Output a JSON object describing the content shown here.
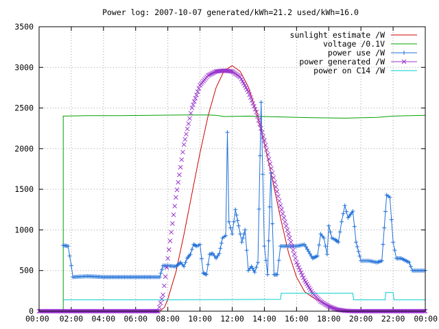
{
  "chart_data": {
    "type": "line",
    "title": "Power log: 2007-10-07 generated/kWh=21.2 used/kWh=16.0",
    "xlabel": "",
    "ylabel": "",
    "xlim": [
      0,
      24
    ],
    "ylim": [
      0,
      3500
    ],
    "x_ticks": [
      "00:00",
      "02:00",
      "04:00",
      "06:00",
      "08:00",
      "10:00",
      "12:00",
      "14:00",
      "16:00",
      "18:00",
      "20:00",
      "22:00",
      "00:00"
    ],
    "y_ticks": [
      "0",
      "500",
      "1000",
      "1500",
      "2000",
      "2500",
      "3000",
      "3500"
    ],
    "grid": true,
    "legend_position": "top-right",
    "series": [
      {
        "name": "sunlight estimate /W",
        "color": "#cc0000",
        "style": "line",
        "points": [
          [
            7.5,
            0
          ],
          [
            7.8,
            50
          ],
          [
            8.0,
            150
          ],
          [
            8.5,
            480
          ],
          [
            9.0,
            940
          ],
          [
            9.5,
            1450
          ],
          [
            10.0,
            1950
          ],
          [
            10.5,
            2400
          ],
          [
            11.0,
            2750
          ],
          [
            11.5,
            2960
          ],
          [
            12.0,
            3020
          ],
          [
            12.5,
            2950
          ],
          [
            13.0,
            2760
          ],
          [
            13.5,
            2460
          ],
          [
            14.0,
            2070
          ],
          [
            14.5,
            1620
          ],
          [
            15.0,
            1150
          ],
          [
            15.5,
            720
          ],
          [
            16.0,
            420
          ],
          [
            16.5,
            240
          ],
          [
            17.0,
            170
          ],
          [
            17.5,
            120
          ],
          [
            18.0,
            70
          ],
          [
            18.5,
            30
          ],
          [
            19.0,
            10
          ],
          [
            19.5,
            0
          ],
          [
            20.0,
            0
          ]
        ]
      },
      {
        "name": "voltage /0.1V",
        "color": "#00a000",
        "style": "line",
        "points": [
          [
            1.5,
            0
          ],
          [
            1.5,
            2400
          ],
          [
            3.0,
            2405
          ],
          [
            5.0,
            2405
          ],
          [
            7.0,
            2410
          ],
          [
            9.0,
            2415
          ],
          [
            10.5,
            2415
          ],
          [
            11.0,
            2410
          ],
          [
            11.5,
            2395
          ],
          [
            13.0,
            2400
          ],
          [
            15.0,
            2390
          ],
          [
            17.0,
            2380
          ],
          [
            19.0,
            2375
          ],
          [
            21.0,
            2385
          ],
          [
            22.0,
            2400
          ],
          [
            24.0,
            2410
          ]
        ]
      },
      {
        "name": "power use /W",
        "color": "#1e6fd8",
        "style": "linepoints",
        "points": [
          [
            1.5,
            810
          ],
          [
            1.8,
            800
          ],
          [
            2.0,
            560
          ],
          [
            2.1,
            420
          ],
          [
            3.0,
            430
          ],
          [
            4.0,
            420
          ],
          [
            5.0,
            420
          ],
          [
            6.0,
            420
          ],
          [
            7.0,
            420
          ],
          [
            7.5,
            420
          ],
          [
            7.7,
            560
          ],
          [
            8.0,
            560
          ],
          [
            8.5,
            550
          ],
          [
            8.8,
            600
          ],
          [
            9.0,
            550
          ],
          [
            9.2,
            650
          ],
          [
            9.4,
            700
          ],
          [
            9.6,
            820
          ],
          [
            9.8,
            800
          ],
          [
            10.0,
            820
          ],
          [
            10.2,
            470
          ],
          [
            10.4,
            450
          ],
          [
            10.6,
            700
          ],
          [
            10.8,
            710
          ],
          [
            11.0,
            650
          ],
          [
            11.2,
            710
          ],
          [
            11.4,
            900
          ],
          [
            11.6,
            930
          ],
          [
            11.7,
            2200
          ],
          [
            11.8,
            1100
          ],
          [
            12.0,
            950
          ],
          [
            12.2,
            1250
          ],
          [
            12.4,
            1050
          ],
          [
            12.6,
            850
          ],
          [
            12.8,
            1000
          ],
          [
            13.0,
            500
          ],
          [
            13.2,
            550
          ],
          [
            13.4,
            480
          ],
          [
            13.6,
            600
          ],
          [
            13.8,
            2570
          ],
          [
            14.0,
            800
          ],
          [
            14.2,
            450
          ],
          [
            14.4,
            1700
          ],
          [
            14.6,
            450
          ],
          [
            14.8,
            450
          ],
          [
            15.0,
            800
          ],
          [
            15.5,
            800
          ],
          [
            16.0,
            800
          ],
          [
            16.5,
            820
          ],
          [
            17.0,
            650
          ],
          [
            17.3,
            680
          ],
          [
            17.5,
            950
          ],
          [
            17.7,
            900
          ],
          [
            17.9,
            700
          ],
          [
            18.0,
            1050
          ],
          [
            18.2,
            900
          ],
          [
            18.4,
            880
          ],
          [
            18.6,
            850
          ],
          [
            18.8,
            1100
          ],
          [
            19.0,
            1300
          ],
          [
            19.2,
            1150
          ],
          [
            19.5,
            1230
          ],
          [
            19.7,
            850
          ],
          [
            20.0,
            620
          ],
          [
            20.5,
            620
          ],
          [
            21.0,
            600
          ],
          [
            21.3,
            620
          ],
          [
            21.6,
            1430
          ],
          [
            21.8,
            1400
          ],
          [
            22.0,
            850
          ],
          [
            22.2,
            650
          ],
          [
            22.5,
            650
          ],
          [
            23.0,
            600
          ],
          [
            23.2,
            500
          ],
          [
            23.6,
            500
          ],
          [
            24.0,
            500
          ]
        ]
      },
      {
        "name": "power generated /W",
        "color": "#9933cc",
        "style": "points",
        "points": [
          [
            0,
            0
          ],
          [
            1,
            0
          ],
          [
            2,
            0
          ],
          [
            3,
            0
          ],
          [
            4,
            0
          ],
          [
            5,
            0
          ],
          [
            6,
            0
          ],
          [
            7,
            0
          ],
          [
            7.4,
            0
          ],
          [
            7.7,
            200
          ],
          [
            8.0,
            650
          ],
          [
            8.5,
            1400
          ],
          [
            9.0,
            2050
          ],
          [
            9.5,
            2500
          ],
          [
            10.0,
            2780
          ],
          [
            10.5,
            2900
          ],
          [
            11.0,
            2950
          ],
          [
            11.5,
            2960
          ],
          [
            12.0,
            2950
          ],
          [
            12.5,
            2880
          ],
          [
            13.0,
            2700
          ],
          [
            13.5,
            2450
          ],
          [
            14.0,
            2100
          ],
          [
            14.5,
            1700
          ],
          [
            15.0,
            1300
          ],
          [
            15.5,
            950
          ],
          [
            16.0,
            600
          ],
          [
            16.5,
            380
          ],
          [
            17.0,
            220
          ],
          [
            17.5,
            120
          ],
          [
            18.0,
            60
          ],
          [
            18.5,
            20
          ],
          [
            19.0,
            5
          ],
          [
            19.5,
            0
          ],
          [
            20.0,
            0
          ],
          [
            21.0,
            0
          ],
          [
            22.0,
            0
          ],
          [
            23.0,
            0
          ],
          [
            24.0,
            0
          ]
        ]
      },
      {
        "name": "power on C14 /W",
        "color": "#00cccc",
        "style": "line",
        "points": [
          [
            1.5,
            140
          ],
          [
            7.5,
            140
          ],
          [
            7.5,
            140
          ],
          [
            15.0,
            145
          ],
          [
            15.05,
            220
          ],
          [
            19.5,
            220
          ],
          [
            19.55,
            140
          ],
          [
            21.5,
            140
          ],
          [
            21.55,
            230
          ],
          [
            22.0,
            230
          ],
          [
            22.05,
            140
          ],
          [
            24.0,
            140
          ]
        ]
      }
    ]
  }
}
